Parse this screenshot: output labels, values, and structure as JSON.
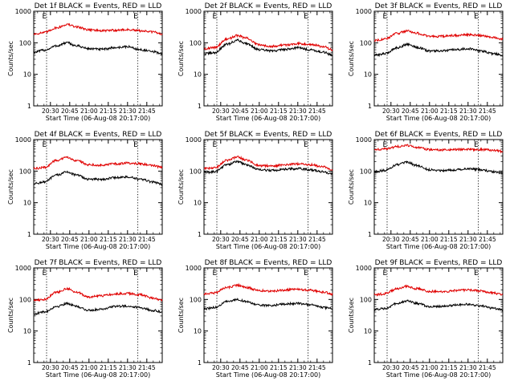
{
  "chart_data": [
    {
      "type": "line",
      "title": "Det 1f BLACK = Events, RED = LLD",
      "xlabel": "Start Time (06-Aug-08 20:17:00)",
      "ylabel": "Counts/sec",
      "yscale": "log",
      "ylim": [
        1,
        1000
      ],
      "xlim": [
        "20:17",
        "21:57"
      ],
      "x_ticks": [
        "20:30",
        "20:45",
        "21:00",
        "21:15",
        "21:30",
        "21:45"
      ],
      "y_ticks": [
        "1",
        "10",
        "100",
        "1000"
      ],
      "markers": [
        {
          "time": "20:27",
          "label": "E"
        },
        {
          "time": "21:38",
          "label": "E"
        }
      ],
      "series": [
        {
          "color": "#000000",
          "x": [
            "20:17",
            "20:25",
            "20:35",
            "20:43",
            "20:50",
            "21:00",
            "21:10",
            "21:20",
            "21:30",
            "21:40",
            "21:50",
            "21:57"
          ],
          "values": [
            50,
            58,
            80,
            100,
            80,
            65,
            62,
            70,
            75,
            60,
            52,
            45
          ]
        },
        {
          "color": "#e00000",
          "x": [
            "20:17",
            "20:25",
            "20:35",
            "20:43",
            "20:50",
            "21:00",
            "21:10",
            "21:20",
            "21:30",
            "21:40",
            "21:50",
            "21:57"
          ],
          "values": [
            190,
            210,
            300,
            380,
            320,
            260,
            240,
            250,
            260,
            240,
            220,
            190
          ]
        }
      ]
    },
    {
      "type": "line",
      "title": "Det 2f BLACK = Events, RED = LLD",
      "xlabel": "Start Time (06-Aug-08 20:17:00)",
      "ylabel": "Counts/sec",
      "yscale": "log",
      "ylim": [
        1,
        1000
      ],
      "xlim": [
        "20:17",
        "21:57"
      ],
      "x_ticks": [
        "20:30",
        "20:45",
        "21:00",
        "21:15",
        "21:30",
        "21:45"
      ],
      "y_ticks": [
        "1",
        "10",
        "100",
        "1000"
      ],
      "markers": [
        {
          "time": "20:27",
          "label": "E"
        },
        {
          "time": "21:38",
          "label": "E"
        }
      ],
      "series": [
        {
          "color": "#000000",
          "x": [
            "20:17",
            "20:25",
            "20:35",
            "20:43",
            "20:50",
            "21:00",
            "21:10",
            "21:20",
            "21:30",
            "21:40",
            "21:50",
            "21:57"
          ],
          "values": [
            45,
            48,
            90,
            120,
            95,
            60,
            55,
            62,
            70,
            60,
            50,
            40
          ]
        },
        {
          "color": "#e00000",
          "x": [
            "20:17",
            "20:25",
            "20:35",
            "20:43",
            "20:50",
            "21:00",
            "21:10",
            "21:20",
            "21:30",
            "21:40",
            "21:50",
            "21:57"
          ],
          "values": [
            65,
            70,
            130,
            170,
            140,
            85,
            78,
            85,
            95,
            90,
            75,
            60
          ]
        }
      ]
    },
    {
      "type": "line",
      "title": "Det 3f BLACK = Events, RED = LLD",
      "xlabel": "Start Time (06-Aug-08 20:17:00)",
      "ylabel": "Counts/sec",
      "yscale": "log",
      "ylim": [
        1,
        1000
      ],
      "xlim": [
        "20:17",
        "21:57"
      ],
      "x_ticks": [
        "20:30",
        "20:45",
        "21:00",
        "21:15",
        "21:30",
        "21:45"
      ],
      "y_ticks": [
        "1",
        "10",
        "100",
        "1000"
      ],
      "markers": [
        {
          "time": "20:27",
          "label": "E"
        },
        {
          "time": "21:38",
          "label": "E"
        }
      ],
      "series": [
        {
          "color": "#000000",
          "x": [
            "20:17",
            "20:25",
            "20:35",
            "20:43",
            "20:50",
            "21:00",
            "21:10",
            "21:20",
            "21:30",
            "21:40",
            "21:50",
            "21:57"
          ],
          "values": [
            40,
            45,
            70,
            90,
            72,
            55,
            55,
            60,
            65,
            55,
            45,
            40
          ]
        },
        {
          "color": "#e00000",
          "x": [
            "20:17",
            "20:25",
            "20:35",
            "20:43",
            "20:50",
            "21:00",
            "21:10",
            "21:20",
            "21:30",
            "21:40",
            "21:50",
            "21:57"
          ],
          "values": [
            120,
            130,
            200,
            240,
            200,
            160,
            160,
            170,
            180,
            170,
            150,
            130
          ]
        }
      ]
    },
    {
      "type": "line",
      "title": "Det 4f BLACK = Events, RED = LLD",
      "xlabel": "Start Time (06-Aug-08 20:17:00)",
      "ylabel": "Counts/sec",
      "yscale": "log",
      "ylim": [
        1,
        1000
      ],
      "xlim": [
        "20:17",
        "21:57"
      ],
      "x_ticks": [
        "20:30",
        "20:45",
        "21:00",
        "21:15",
        "21:30",
        "21:45"
      ],
      "y_ticks": [
        "1",
        "10",
        "100",
        "1000"
      ],
      "markers": [
        {
          "time": "20:27",
          "label": "E"
        },
        {
          "time": "21:38",
          "label": "E"
        }
      ],
      "series": [
        {
          "color": "#000000",
          "x": [
            "20:17",
            "20:25",
            "20:35",
            "20:43",
            "20:50",
            "21:00",
            "21:10",
            "21:20",
            "21:30",
            "21:40",
            "21:50",
            "21:57"
          ],
          "values": [
            40,
            45,
            75,
            95,
            75,
            55,
            55,
            62,
            65,
            55,
            45,
            38
          ]
        },
        {
          "color": "#e00000",
          "x": [
            "20:17",
            "20:25",
            "20:35",
            "20:43",
            "20:50",
            "21:00",
            "21:10",
            "21:20",
            "21:30",
            "21:40",
            "21:50",
            "21:57"
          ],
          "values": [
            120,
            130,
            220,
            270,
            220,
            160,
            155,
            170,
            180,
            170,
            150,
            130
          ]
        }
      ]
    },
    {
      "type": "line",
      "title": "Det 5f BLACK = Events, RED = LLD",
      "xlabel": "Start Time (06-Aug-08 20:17:00)",
      "ylabel": "Counts/sec",
      "yscale": "log",
      "ylim": [
        1,
        1000
      ],
      "xlim": [
        "20:17",
        "21:57"
      ],
      "x_ticks": [
        "20:30",
        "20:45",
        "21:00",
        "21:15",
        "21:30",
        "21:45"
      ],
      "y_ticks": [
        "1",
        "10",
        "100",
        "1000"
      ],
      "markers": [
        {
          "time": "20:27",
          "label": "E"
        },
        {
          "time": "21:38",
          "label": "E"
        }
      ],
      "series": [
        {
          "color": "#000000",
          "x": [
            "20:17",
            "20:25",
            "20:35",
            "20:43",
            "20:50",
            "21:00",
            "21:10",
            "21:20",
            "21:30",
            "21:40",
            "21:50",
            "21:57"
          ],
          "values": [
            90,
            95,
            160,
            200,
            160,
            110,
            105,
            115,
            120,
            110,
            95,
            80
          ]
        },
        {
          "color": "#e00000",
          "x": [
            "20:17",
            "20:25",
            "20:35",
            "20:43",
            "20:50",
            "21:00",
            "21:10",
            "21:20",
            "21:30",
            "21:40",
            "21:50",
            "21:57"
          ],
          "values": [
            120,
            125,
            220,
            280,
            220,
            150,
            145,
            160,
            170,
            160,
            135,
            110
          ]
        }
      ]
    },
    {
      "type": "line",
      "title": "Det 6f BLACK = Events, RED = LLD",
      "xlabel": "Start Time (06-Aug-08 20:17:00)",
      "ylabel": "Counts/sec",
      "yscale": "log",
      "ylim": [
        1,
        1000
      ],
      "xlim": [
        "20:17",
        "21:57"
      ],
      "x_ticks": [
        "20:30",
        "20:45",
        "21:00",
        "21:15",
        "21:30",
        "21:45"
      ],
      "y_ticks": [
        "1",
        "10",
        "100",
        "1000"
      ],
      "markers": [
        {
          "time": "20:27",
          "label": "E"
        },
        {
          "time": "21:38",
          "label": "E"
        }
      ],
      "series": [
        {
          "color": "#000000",
          "x": [
            "20:17",
            "20:25",
            "20:35",
            "20:43",
            "20:50",
            "21:00",
            "21:10",
            "21:20",
            "21:30",
            "21:40",
            "21:50",
            "21:57"
          ],
          "values": [
            95,
            105,
            160,
            190,
            150,
            110,
            105,
            110,
            120,
            110,
            95,
            85
          ]
        },
        {
          "color": "#e00000",
          "x": [
            "20:17",
            "20:25",
            "20:35",
            "20:43",
            "20:50",
            "21:00",
            "21:10",
            "21:20",
            "21:30",
            "21:40",
            "21:50",
            "21:57"
          ],
          "values": [
            480,
            500,
            600,
            650,
            560,
            480,
            470,
            480,
            490,
            480,
            460,
            420
          ]
        }
      ]
    },
    {
      "type": "line",
      "title": "Det 7f BLACK = Events, RED = LLD",
      "xlabel": "Start Time (06-Aug-08 20:17:00)",
      "ylabel": "Counts/sec",
      "yscale": "log",
      "ylim": [
        1,
        1000
      ],
      "xlim": [
        "20:17",
        "21:57"
      ],
      "x_ticks": [
        "20:30",
        "20:45",
        "21:00",
        "21:15",
        "21:30",
        "21:45"
      ],
      "y_ticks": [
        "1",
        "10",
        "100",
        "1000"
      ],
      "markers": [
        {
          "time": "20:27",
          "label": "E"
        },
        {
          "time": "21:38",
          "label": "E"
        }
      ],
      "series": [
        {
          "color": "#000000",
          "x": [
            "20:17",
            "20:25",
            "20:35",
            "20:43",
            "20:50",
            "21:00",
            "21:10",
            "21:20",
            "21:30",
            "21:40",
            "21:50",
            "21:57"
          ],
          "values": [
            35,
            40,
            60,
            75,
            60,
            45,
            50,
            60,
            62,
            55,
            45,
            40
          ]
        },
        {
          "color": "#e00000",
          "x": [
            "20:17",
            "20:25",
            "20:35",
            "20:43",
            "20:50",
            "21:00",
            "21:10",
            "21:20",
            "21:30",
            "21:40",
            "21:50",
            "21:57"
          ],
          "values": [
            95,
            100,
            170,
            220,
            170,
            120,
            130,
            150,
            155,
            140,
            110,
            95
          ]
        }
      ]
    },
    {
      "type": "line",
      "title": "Det 8f BLACK = Events, RED = LLD",
      "xlabel": "Start Time (06-Aug-08 20:17:00)",
      "ylabel": "Counts/sec",
      "yscale": "log",
      "ylim": [
        1,
        1000
      ],
      "xlim": [
        "20:17",
        "21:57"
      ],
      "x_ticks": [
        "20:30",
        "20:45",
        "21:00",
        "21:15",
        "21:30",
        "21:45"
      ],
      "y_ticks": [
        "1",
        "10",
        "100",
        "1000"
      ],
      "markers": [
        {
          "time": "20:27",
          "label": "E"
        },
        {
          "time": "21:38",
          "label": "E"
        }
      ],
      "series": [
        {
          "color": "#000000",
          "x": [
            "20:17",
            "20:25",
            "20:35",
            "20:43",
            "20:50",
            "21:00",
            "21:10",
            "21:20",
            "21:30",
            "21:40",
            "21:50",
            "21:57"
          ],
          "values": [
            50,
            55,
            85,
            100,
            85,
            65,
            65,
            72,
            75,
            68,
            55,
            50
          ]
        },
        {
          "color": "#e00000",
          "x": [
            "20:17",
            "20:25",
            "20:35",
            "20:43",
            "20:50",
            "21:00",
            "21:10",
            "21:20",
            "21:30",
            "21:40",
            "21:50",
            "21:57"
          ],
          "values": [
            150,
            160,
            240,
            280,
            240,
            190,
            185,
            200,
            210,
            195,
            170,
            150
          ]
        }
      ]
    },
    {
      "type": "line",
      "title": "Det 9f BLACK = Events, RED = LLD",
      "xlabel": "Start Time (06-Aug-08 20:17:00)",
      "ylabel": "Counts/sec",
      "yscale": "log",
      "ylim": [
        1,
        1000
      ],
      "xlim": [
        "20:17",
        "21:57"
      ],
      "x_ticks": [
        "20:30",
        "20:45",
        "21:00",
        "21:15",
        "21:30",
        "21:45"
      ],
      "y_ticks": [
        "1",
        "10",
        "100",
        "1000"
      ],
      "markers": [
        {
          "time": "20:27",
          "label": "E"
        },
        {
          "time": "21:38",
          "label": "E"
        }
      ],
      "series": [
        {
          "color": "#000000",
          "x": [
            "20:17",
            "20:25",
            "20:35",
            "20:43",
            "20:50",
            "21:00",
            "21:10",
            "21:20",
            "21:30",
            "21:40",
            "21:50",
            "21:57"
          ],
          "values": [
            48,
            52,
            75,
            90,
            75,
            60,
            60,
            66,
            70,
            62,
            52,
            46
          ]
        },
        {
          "color": "#e00000",
          "x": [
            "20:17",
            "20:25",
            "20:35",
            "20:43",
            "20:50",
            "21:00",
            "21:10",
            "21:20",
            "21:30",
            "21:40",
            "21:50",
            "21:57"
          ],
          "values": [
            140,
            150,
            220,
            260,
            220,
            180,
            175,
            190,
            200,
            185,
            160,
            140
          ]
        }
      ]
    }
  ]
}
